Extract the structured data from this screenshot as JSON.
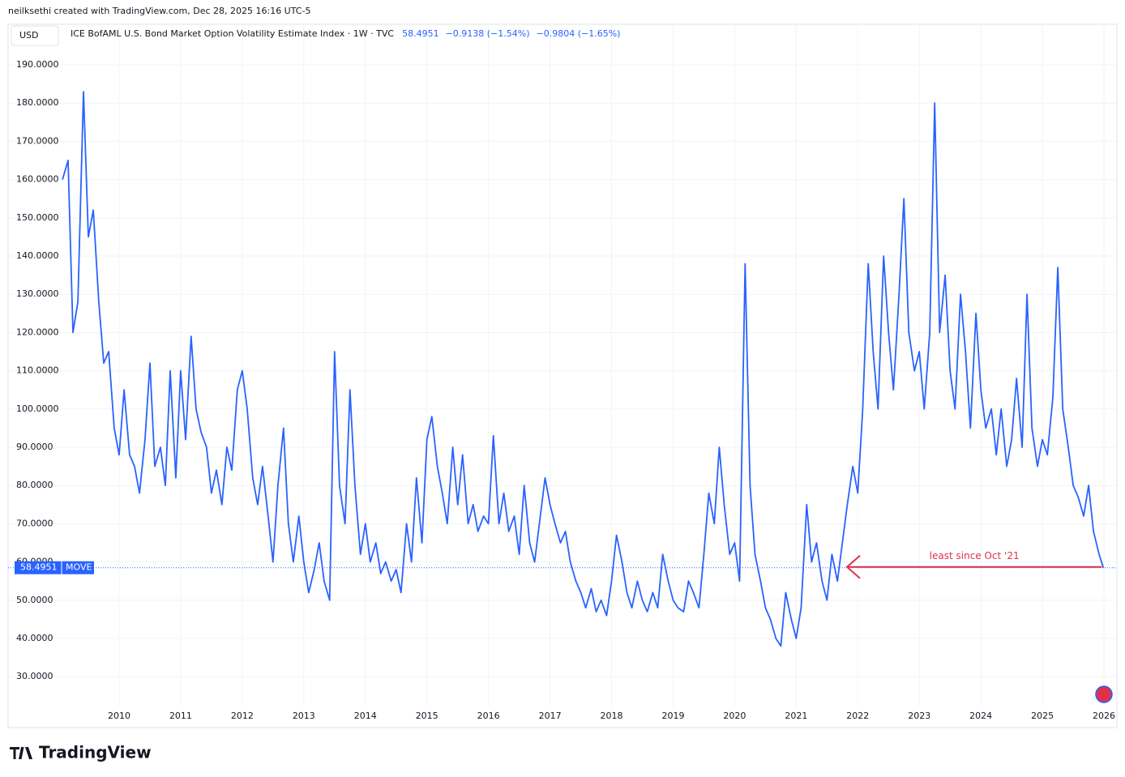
{
  "header": {
    "credit": "neilksethi created with TradingView.com, Dec 28, 2025 16:16 UTC-5",
    "currency": "USD"
  },
  "footer": {
    "brand": "TradingView"
  },
  "chart_data": {
    "type": "line",
    "title": "ICE BofAML U.S. Bond Market Option Volatility Estimate Index · 1W · TVC",
    "change": "−0.9138 (−1.54%)",
    "change_2": "−0.9804 (−1.65%)",
    "annotation": "least since Oct '21",
    "x": [
      2009.08,
      2009.17,
      2009.25,
      2009.33,
      2009.42,
      2009.5,
      2009.58,
      2009.67,
      2009.75,
      2009.83,
      2009.92,
      2010,
      2010.08,
      2010.17,
      2010.25,
      2010.33,
      2010.42,
      2010.5,
      2010.58,
      2010.67,
      2010.75,
      2010.83,
      2010.92,
      2011,
      2011.08,
      2011.17,
      2011.25,
      2011.33,
      2011.42,
      2011.5,
      2011.58,
      2011.67,
      2011.75,
      2011.83,
      2011.92,
      2012,
      2012.08,
      2012.17,
      2012.25,
      2012.33,
      2012.42,
      2012.5,
      2012.58,
      2012.67,
      2012.75,
      2012.83,
      2012.92,
      2013,
      2013.08,
      2013.17,
      2013.25,
      2013.33,
      2013.42,
      2013.5,
      2013.58,
      2013.67,
      2013.75,
      2013.83,
      2013.92,
      2014,
      2014.08,
      2014.17,
      2014.25,
      2014.33,
      2014.42,
      2014.5,
      2014.58,
      2014.67,
      2014.75,
      2014.83,
      2014.92,
      2015,
      2015.08,
      2015.17,
      2015.25,
      2015.33,
      2015.42,
      2015.5,
      2015.58,
      2015.67,
      2015.75,
      2015.83,
      2015.92,
      2016,
      2016.08,
      2016.17,
      2016.25,
      2016.33,
      2016.42,
      2016.5,
      2016.58,
      2016.67,
      2016.75,
      2016.92,
      2017,
      2017.08,
      2017.17,
      2017.25,
      2017.33,
      2017.42,
      2017.5,
      2017.58,
      2017.67,
      2017.75,
      2017.83,
      2017.92,
      2018,
      2018.08,
      2018.17,
      2018.25,
      2018.33,
      2018.42,
      2018.5,
      2018.58,
      2018.67,
      2018.75,
      2018.83,
      2018.92,
      2019,
      2019.08,
      2019.17,
      2019.25,
      2019.33,
      2019.42,
      2019.5,
      2019.58,
      2019.67,
      2019.75,
      2019.83,
      2019.92,
      2020,
      2020.08,
      2020.17,
      2020.25,
      2020.33,
      2020.42,
      2020.5,
      2020.58,
      2020.67,
      2020.75,
      2020.83,
      2020.92,
      2021,
      2021.08,
      2021.17,
      2021.25,
      2021.33,
      2021.42,
      2021.5,
      2021.58,
      2021.67,
      2021.75,
      2021.83,
      2021.92,
      2022,
      2022.08,
      2022.17,
      2022.25,
      2022.33,
      2022.42,
      2022.5,
      2022.58,
      2022.67,
      2022.75,
      2022.83,
      2022.92,
      2023,
      2023.08,
      2023.17,
      2023.25,
      2023.33,
      2023.42,
      2023.5,
      2023.58,
      2023.67,
      2023.75,
      2023.83,
      2023.92,
      2024,
      2024.08,
      2024.17,
      2024.25,
      2024.33,
      2024.42,
      2024.5,
      2024.58,
      2024.67,
      2024.75,
      2024.83,
      2024.92,
      2025,
      2025.08,
      2025.17,
      2025.25,
      2025.33,
      2025.42,
      2025.5,
      2025.58,
      2025.67,
      2025.75,
      2025.83,
      2025.92,
      2025.99
    ],
    "series": [
      {
        "name": "MOVE",
        "color": "#2962ff",
        "values": [
          160,
          165,
          120,
          128,
          183,
          145,
          152,
          128,
          112,
          115,
          95,
          88,
          105,
          88,
          85,
          78,
          92,
          112,
          85,
          90,
          80,
          110,
          82,
          110,
          92,
          119,
          100,
          94,
          90,
          78,
          84,
          75,
          90,
          84,
          105,
          110,
          100,
          82,
          75,
          85,
          72,
          60,
          80,
          95,
          70,
          60,
          72,
          60,
          52,
          58,
          65,
          55,
          50,
          115,
          80,
          70,
          105,
          80,
          62,
          70,
          60,
          65,
          57,
          60,
          55,
          58,
          52,
          70,
          60,
          82,
          65,
          92,
          98,
          85,
          78,
          70,
          90,
          75,
          88,
          70,
          75,
          68,
          72,
          70,
          93,
          70,
          78,
          68,
          72,
          62,
          80,
          65,
          60,
          82,
          75,
          70,
          65,
          68,
          60,
          55,
          52,
          48,
          53,
          47,
          50,
          46,
          55,
          67,
          60,
          52,
          48,
          55,
          50,
          47,
          52,
          48,
          62,
          55,
          50,
          48,
          47,
          55,
          52,
          48,
          62,
          78,
          70,
          90,
          75,
          62,
          65,
          55,
          138,
          80,
          62,
          55,
          48,
          45,
          40,
          38,
          52,
          45,
          40,
          48,
          75,
          60,
          65,
          55,
          50,
          62,
          55,
          65,
          75,
          85,
          78,
          100,
          138,
          115,
          100,
          140,
          120,
          105,
          130,
          155,
          120,
          110,
          115,
          100,
          120,
          180,
          120,
          135,
          110,
          100,
          130,
          115,
          95,
          125,
          105,
          95,
          100,
          88,
          100,
          85,
          92,
          108,
          90,
          130,
          95,
          85,
          92,
          88,
          103,
          137,
          100,
          90,
          80,
          77,
          72,
          80,
          68,
          62,
          58.4951
        ]
      }
    ],
    "xlim": [
      2008.196,
      2026.21
    ],
    "xticks": [
      2010,
      2011,
      2012,
      2013,
      2014,
      2015,
      2016,
      2017,
      2018,
      2019,
      2020,
      2021,
      2022,
      2023,
      2024,
      2025,
      2026
    ],
    "ylim": [
      22.2,
      200.6
    ],
    "yticks": [
      {
        "value": 30,
        "label": "30.0000"
      },
      {
        "value": 40,
        "label": "40.0000"
      },
      {
        "value": 50,
        "label": "50.0000"
      },
      {
        "value": 60,
        "label": "60.0000"
      },
      {
        "value": 70,
        "label": "70.0000"
      },
      {
        "value": 80,
        "label": "80.0000"
      },
      {
        "value": 90,
        "label": "90.0000"
      },
      {
        "value": 100,
        "label": "100.0000"
      },
      {
        "value": 110,
        "label": "110.0000"
      },
      {
        "value": 120,
        "label": "120.0000"
      },
      {
        "value": 130,
        "label": "130.0000"
      },
      {
        "value": 140,
        "label": "140.0000"
      },
      {
        "value": 150,
        "label": "150.0000"
      },
      {
        "value": 160,
        "label": "160.0000"
      },
      {
        "value": 170,
        "label": "170.0000"
      },
      {
        "value": 180,
        "label": "180.0000"
      },
      {
        "value": 190,
        "label": "190.0000"
      }
    ],
    "grid": true,
    "annotation_color": "#e0314b"
  }
}
